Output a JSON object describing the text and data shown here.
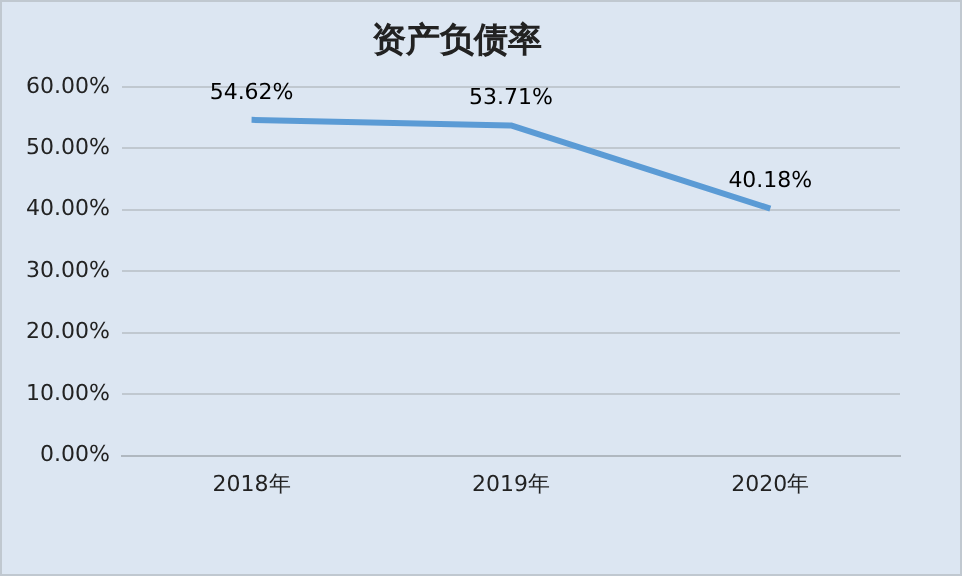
{
  "chart_data": {
    "type": "line",
    "title": "资产负债率",
    "categories": [
      "2018年",
      "2019年",
      "2020年"
    ],
    "series": [
      {
        "color": "#5b9bd5",
        "values": [
          54.62,
          53.71,
          40.18
        ],
        "value_labels": [
          "54.62%",
          "53.71%",
          "40.18%"
        ]
      }
    ],
    "ylim": [
      0,
      60
    ],
    "yticks": [
      {
        "value": 0,
        "label": "0.00%"
      },
      {
        "value": 10,
        "label": "10.00%"
      },
      {
        "value": 20,
        "label": "20.00%"
      },
      {
        "value": 30,
        "label": "30.00%"
      },
      {
        "value": 40,
        "label": "40.00%"
      },
      {
        "value": 50,
        "label": "50.00%"
      },
      {
        "value": 60,
        "label": "60.00%"
      }
    ],
    "grid": "y",
    "legend": false,
    "marker": "none",
    "line_style": "solid"
  }
}
